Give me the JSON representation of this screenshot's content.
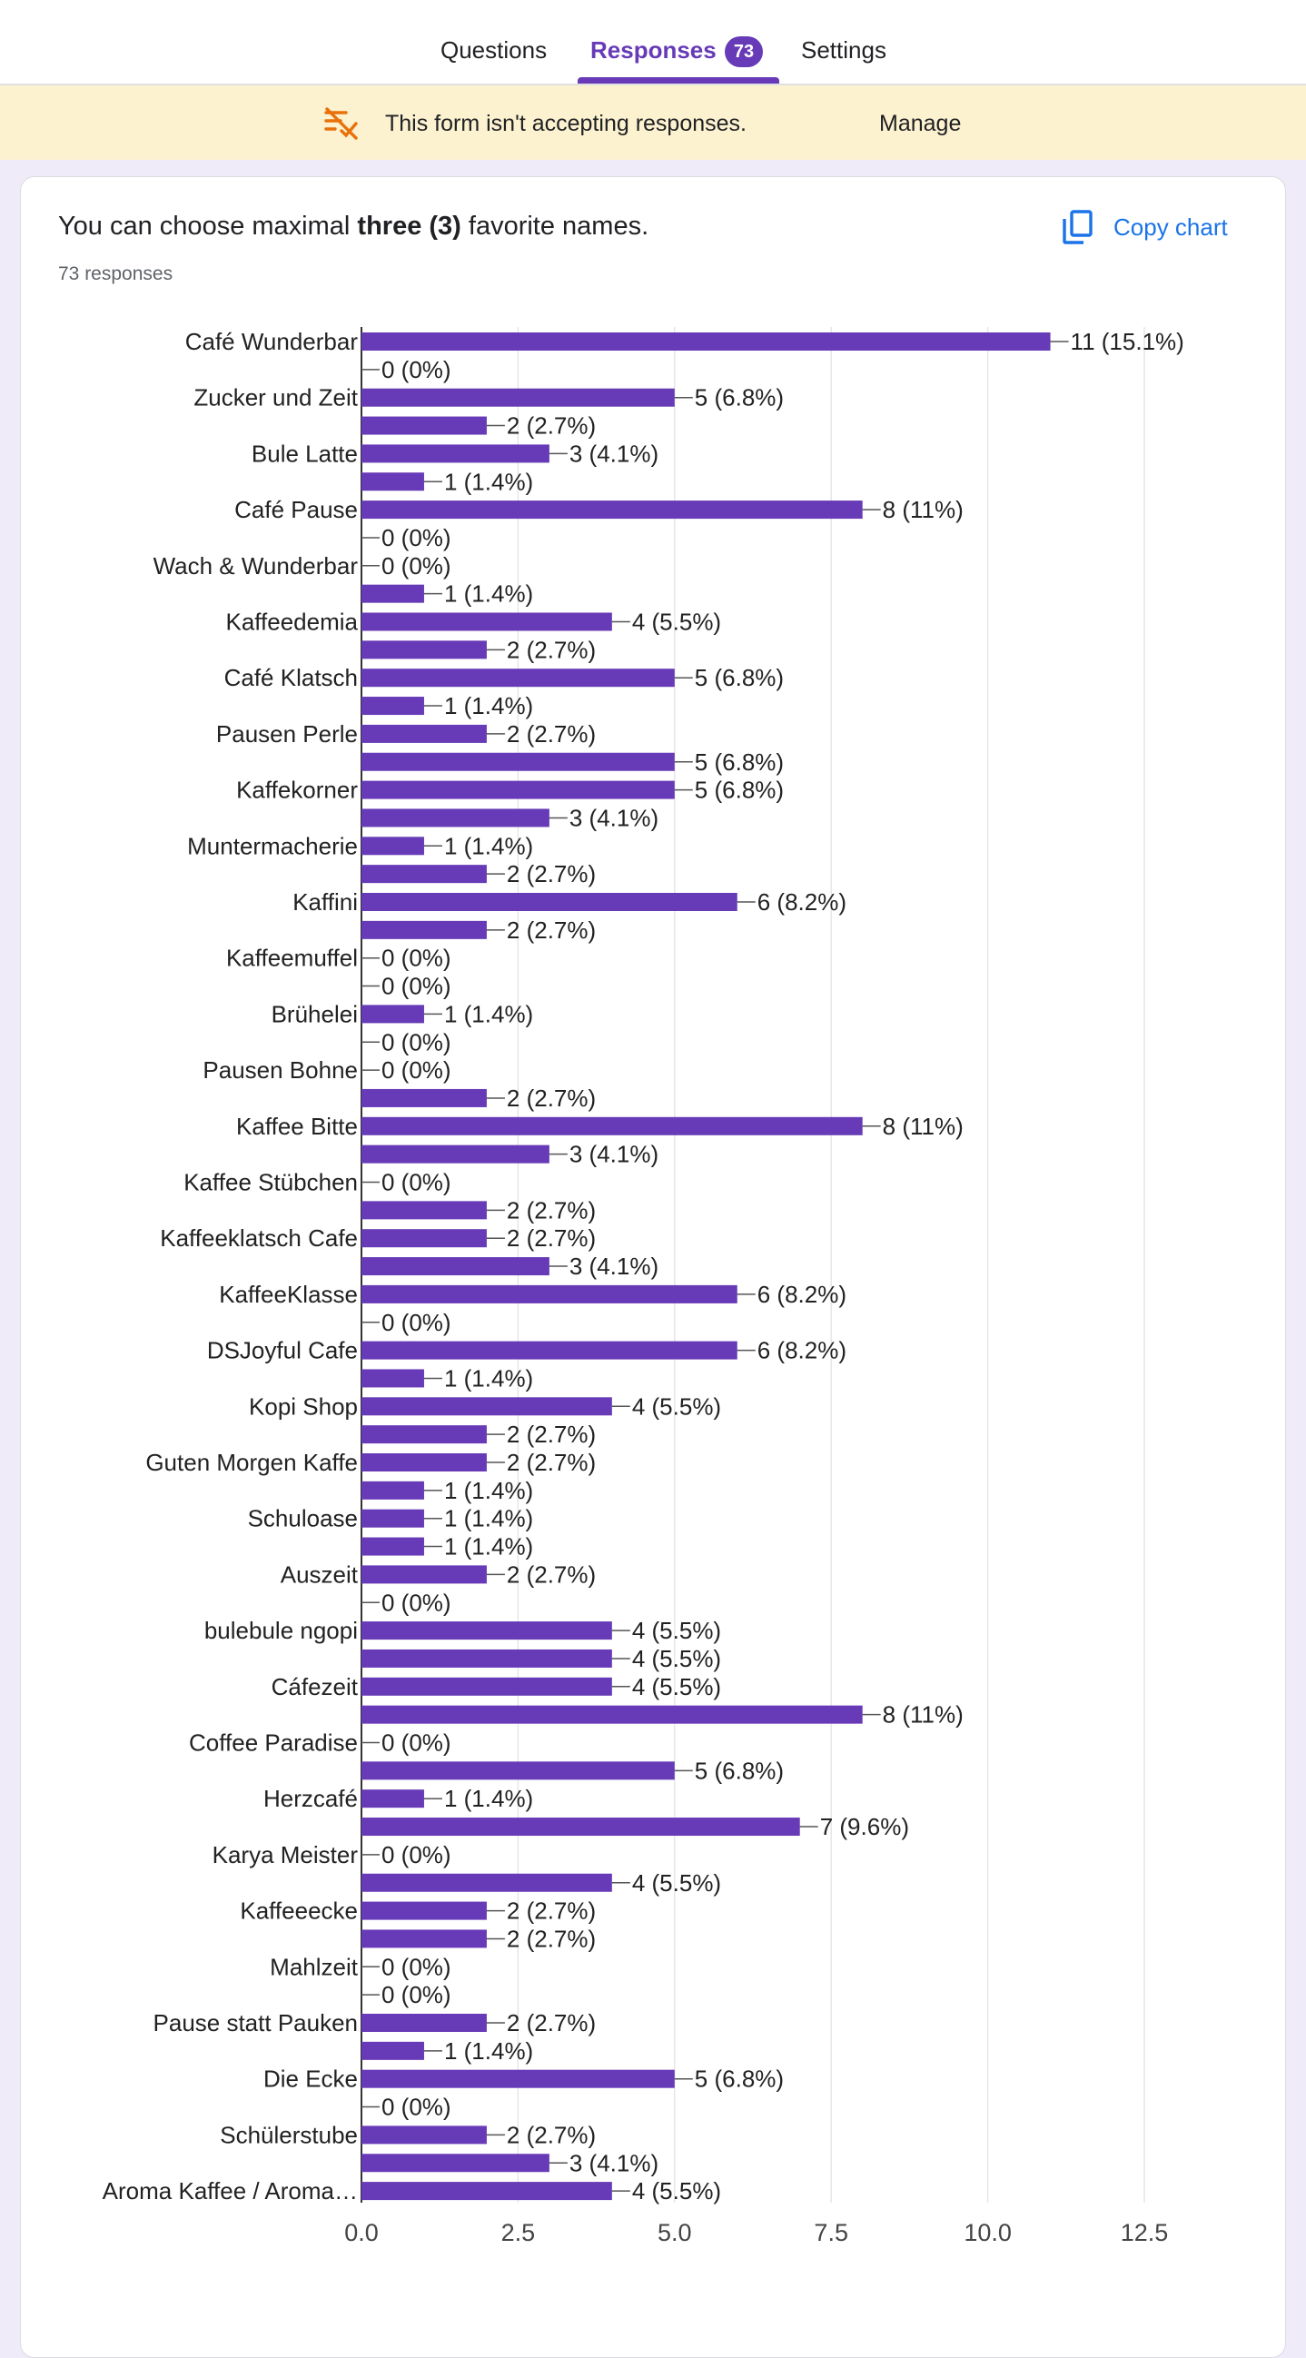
{
  "tabs": {
    "questions": "Questions",
    "responses": "Responses",
    "responses_count": "73",
    "settings": "Settings"
  },
  "banner": {
    "message": "This form isn't accepting responses.",
    "manage": "Manage"
  },
  "question": {
    "title_prefix": "You can choose maximal ",
    "title_bold": "three (3)",
    "title_suffix": " favorite names.",
    "responses": "73 responses",
    "copy_chart": "Copy chart"
  },
  "colors": {
    "accent": "#673ab7",
    "link": "#1a73e8",
    "banner_bg": "#fdf2d0",
    "page_bg": "#f0ebf8"
  },
  "icons": {
    "banner": "responses-off-icon",
    "copy": "copy-icon"
  },
  "chart_data": {
    "type": "bar",
    "orientation": "horizontal",
    "xlim": [
      0,
      12.5
    ],
    "xticks": [
      "0.0",
      "2.5",
      "5.0",
      "7.5",
      "10.0",
      "12.5"
    ],
    "grid": true,
    "categories": [
      "Café Wunderbar",
      "",
      "Zucker und Zeit",
      "",
      "Bule Latte",
      "",
      "Café Pause",
      "",
      "Wach & Wunderbar",
      "",
      "Kaffeedemia",
      "",
      "Café Klatsch",
      "",
      "Pausen Perle",
      "",
      "Kaffekorner",
      "",
      "Muntermacherie",
      "",
      "Kaffini",
      "",
      "Kaffeemuffel",
      "",
      "Brühelei",
      "",
      "Pausen Bohne",
      "",
      "Kaffee Bitte",
      "",
      "Kaffee Stübchen",
      "",
      "Kaffeeklatsch Cafe",
      "",
      "KaffeeKlasse",
      "",
      "DSJoyful Cafe",
      "",
      "Kopi Shop",
      "",
      "Guten Morgen Kaffe",
      "",
      "Schuloase",
      "",
      "Auszeit",
      "",
      "bulebule ngopi",
      "",
      "Cáfezeit",
      "",
      "Coffee Paradise",
      "",
      "Herzcafé",
      "",
      "Karya Meister",
      "",
      "Kaffeeecke",
      "",
      "Mahlzeit",
      "",
      "Pause statt Pauken",
      "",
      "Die Ecke",
      "",
      "Schülerstube",
      "",
      "Aroma Kaffee / Aroma…"
    ],
    "values": [
      11,
      0,
      5,
      2,
      3,
      1,
      8,
      0,
      0,
      1,
      4,
      2,
      5,
      1,
      2,
      5,
      5,
      3,
      1,
      2,
      6,
      2,
      0,
      0,
      1,
      0,
      0,
      2,
      8,
      3,
      0,
      2,
      2,
      3,
      6,
      0,
      6,
      1,
      4,
      2,
      2,
      1,
      1,
      1,
      2,
      0,
      4,
      4,
      4,
      8,
      0,
      5,
      1,
      7,
      0,
      4,
      2,
      2,
      0,
      0,
      2,
      1,
      5,
      0,
      2,
      3,
      4
    ],
    "data_labels": [
      "11 (15.1%)",
      "0 (0%)",
      "5 (6.8%)",
      "2 (2.7%)",
      "3 (4.1%)",
      "1 (1.4%)",
      "8 (11%)",
      "0 (0%)",
      "0 (0%)",
      "1 (1.4%)",
      "4 (5.5%)",
      "2 (2.7%)",
      "5 (6.8%)",
      "1 (1.4%)",
      "2 (2.7%)",
      "5 (6.8%)",
      "5 (6.8%)",
      "3 (4.1%)",
      "1 (1.4%)",
      "2 (2.7%)",
      "6 (8.2%)",
      "2 (2.7%)",
      "0 (0%)",
      "0 (0%)",
      "1 (1.4%)",
      "0 (0%)",
      "0 (0%)",
      "2 (2.7%)",
      "8 (11%)",
      "3 (4.1%)",
      "0 (0%)",
      "2 (2.7%)",
      "2 (2.7%)",
      "3 (4.1%)",
      "6 (8.2%)",
      "0 (0%)",
      "6 (8.2%)",
      "1 (1.4%)",
      "4 (5.5%)",
      "2 (2.7%)",
      "2 (2.7%)",
      "1 (1.4%)",
      "1 (1.4%)",
      "1 (1.4%)",
      "2 (2.7%)",
      "0 (0%)",
      "4 (5.5%)",
      "4 (5.5%)",
      "4 (5.5%)",
      "8 (11%)",
      "0 (0%)",
      "5 (6.8%)",
      "1 (1.4%)",
      "7 (9.6%)",
      "0 (0%)",
      "4 (5.5%)",
      "2 (2.7%)",
      "2 (2.7%)",
      "0 (0%)",
      "0 (0%)",
      "2 (2.7%)",
      "1 (1.4%)",
      "5 (6.8%)",
      "0 (0%)",
      "2 (2.7%)",
      "3 (4.1%)",
      "4 (5.5%)"
    ],
    "bar_color": "#673ab7"
  }
}
